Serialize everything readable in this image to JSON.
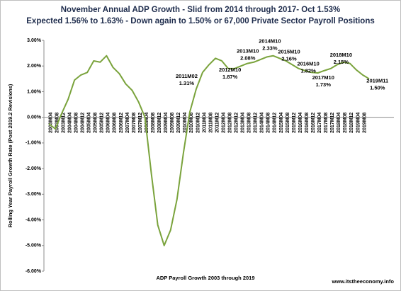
{
  "chart_data": {
    "type": "line",
    "title": "November Annual ADP Growth - Slid from 2014 through 2017- Oct 1.53%",
    "subtitle": "Expected 1.56% to 1.63% - Down again to 1.50% or 67,000 Private Sector Payroll Positions",
    "y_label": "Rolling Year Payroll Growth Rate (Post 2019.2 Revisions)",
    "x_label": "ADP Payroll Growth 2003 through 2019",
    "source": "www.itstheeconomy.info",
    "categories": [
      "2003M04",
      "2003M08",
      "2003M12",
      "2004M04",
      "2004M08",
      "2004M12",
      "2005M04",
      "2005M08",
      "2005M12",
      "2006M04",
      "2006M08",
      "2006M12",
      "2007M04",
      "2007M08",
      "2007M12",
      "2008M04",
      "2008M08",
      "2008M12",
      "2009M04",
      "2009M08",
      "2009M12",
      "2010M04",
      "2010M08",
      "2010M12",
      "2011M04",
      "2011M08",
      "2011M12",
      "2012M04",
      "2012M08",
      "2012M12",
      "2013M04",
      "2013M08",
      "2013M12",
      "2014M04",
      "2014M08",
      "2014M12",
      "2015M04",
      "2015M08",
      "2015M12",
      "2016M04",
      "2016M08",
      "2016M12",
      "2017M04",
      "2017M08",
      "2017M12",
      "2018M04",
      "2018M08",
      "2018M12",
      "2019M04",
      "2019M08",
      null
    ],
    "series": [
      {
        "name": "ADP Payroll Growth",
        "color": "#7aa33c",
        "values": [
          -0.25,
          -0.45,
          0.15,
          0.7,
          1.45,
          1.65,
          1.75,
          2.2,
          2.15,
          2.4,
          1.95,
          1.7,
          1.3,
          1.05,
          0.6,
          0.0,
          -2.2,
          -4.2,
          -5.0,
          -4.4,
          -3.2,
          -1.4,
          0.2,
          1.1,
          1.75,
          2.05,
          2.3,
          2.2,
          1.9,
          1.9,
          2.0,
          2.1,
          2.15,
          2.25,
          2.35,
          2.4,
          2.3,
          2.2,
          2.05,
          1.9,
          1.82,
          1.75,
          1.73,
          1.82,
          1.9,
          2.05,
          2.15,
          2.1,
          1.85,
          1.65,
          1.5
        ]
      }
    ],
    "annotations": [
      {
        "period": "2011M02",
        "label": "1.31%",
        "value": 1.31
      },
      {
        "period": "2012M10",
        "label": "1.87%",
        "value": 1.87
      },
      {
        "period": "2013M10",
        "label": "2.08%",
        "value": 2.08
      },
      {
        "period": "2014M10",
        "label": "2.33%",
        "value": 2.33
      },
      {
        "period": "2015M10",
        "label": "2.16%",
        "value": 2.16
      },
      {
        "period": "2016M10",
        "label": "1.82%",
        "value": 1.82
      },
      {
        "period": "2017M10",
        "label": "1.73%",
        "value": 1.73
      },
      {
        "period": "2018M10",
        "label": "2.15%",
        "value": 2.15
      },
      {
        "period": "2019M11",
        "label": "1.50%",
        "value": 1.5
      }
    ],
    "ylim": [
      -6,
      3
    ],
    "yticks": [
      {
        "value": -6,
        "label": "-6.00%"
      },
      {
        "value": -5,
        "label": "-5.00%"
      },
      {
        "value": -4,
        "label": "-4.00%"
      },
      {
        "value": -3,
        "label": "-3.00%"
      },
      {
        "value": -2,
        "label": "-2.00%"
      },
      {
        "value": -1,
        "label": "-1.00%"
      },
      {
        "value": 0,
        "label": "0.00%"
      },
      {
        "value": 1,
        "label": "1.00%"
      },
      {
        "value": 2,
        "label": "2.00%"
      },
      {
        "value": 3,
        "label": "3.00%"
      }
    ],
    "grid": false
  }
}
